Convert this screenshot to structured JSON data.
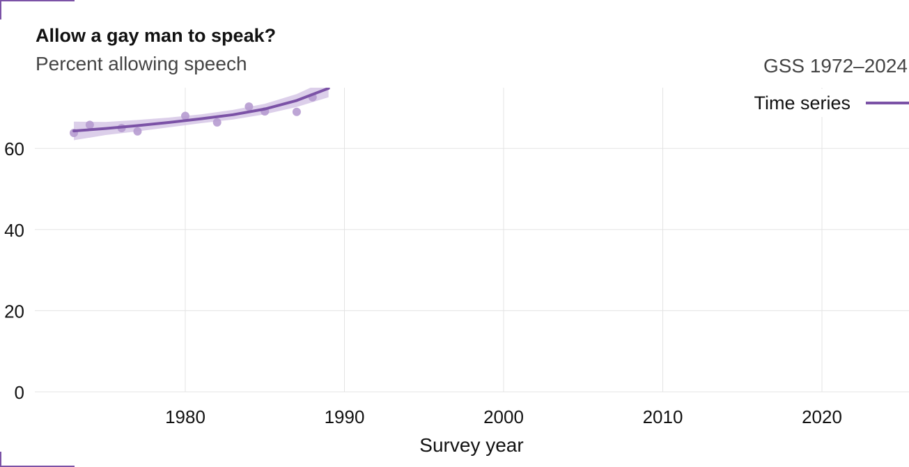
{
  "header": {
    "title": "Allow a gay man to speak?",
    "subtitle": "Percent allowing speech",
    "source": "GSS 1972–2024"
  },
  "legend": {
    "label": "Time series"
  },
  "colors": {
    "accent": "#7b52a6",
    "band": "#d6c7e6",
    "points": "#b69bd0",
    "grid": "#e3e3e3"
  },
  "chart_data": {
    "type": "line",
    "title": "Allow a gay man to speak?",
    "subtitle": "Percent allowing speech",
    "xlabel": "Survey year",
    "ylabel": "",
    "xlim": [
      1971,
      2025
    ],
    "ylim": [
      0,
      75
    ],
    "x_ticks": [
      1980,
      1990,
      2000,
      2010,
      2020
    ],
    "y_ticks": [
      0,
      20,
      40,
      60
    ],
    "grid": true,
    "legend_position": "top-right",
    "series": [
      {
        "name": "Time series",
        "points": [
          {
            "x": 1973,
            "y": 63.8
          },
          {
            "x": 1974,
            "y": 65.8
          },
          {
            "x": 1976,
            "y": 65.0
          },
          {
            "x": 1977,
            "y": 64.2
          },
          {
            "x": 1980,
            "y": 68.0
          },
          {
            "x": 1982,
            "y": 66.4
          },
          {
            "x": 1984,
            "y": 70.3
          },
          {
            "x": 1985,
            "y": 69.1
          },
          {
            "x": 1987,
            "y": 69.0
          },
          {
            "x": 1988,
            "y": 72.6
          }
        ],
        "trend": [
          {
            "x": 1973,
            "y": 64.3
          },
          {
            "x": 1975,
            "y": 64.9
          },
          {
            "x": 1977,
            "y": 65.6
          },
          {
            "x": 1979,
            "y": 66.4
          },
          {
            "x": 1981,
            "y": 67.3
          },
          {
            "x": 1983,
            "y": 68.3
          },
          {
            "x": 1985,
            "y": 69.7
          },
          {
            "x": 1987,
            "y": 71.8
          },
          {
            "x": 1989,
            "y": 74.8
          }
        ],
        "band_lower": [
          62.0,
          63.3,
          64.2,
          65.2,
          66.2,
          67.1,
          68.4,
          70.2,
          72.6
        ],
        "band_upper": [
          66.6,
          66.5,
          67.0,
          67.6,
          68.4,
          69.5,
          71.0,
          73.4,
          77.0
        ]
      }
    ]
  }
}
